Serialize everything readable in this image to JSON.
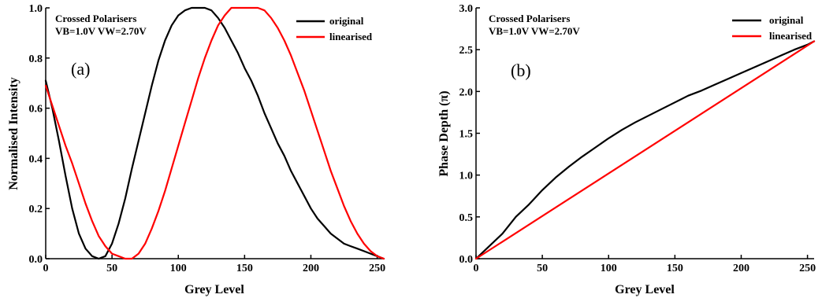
{
  "chart_data": [
    {
      "type": "line",
      "panel_label": "(a)",
      "xlabel": "Grey Level",
      "ylabel": "Normalised Intensity",
      "xlim": [
        0,
        255
      ],
      "ylim": [
        0,
        1.0
      ],
      "xticks": [
        0,
        50,
        100,
        150,
        200,
        250
      ],
      "yticks": [
        "0.0",
        "0.2",
        "0.4",
        "0.6",
        "0.8",
        "1.0"
      ],
      "grid": false,
      "annotation": [
        "Crossed Polarisers",
        "VB=1.0V VW=2.70V"
      ],
      "legend": "top-right",
      "series": [
        {
          "name": "original",
          "color": "#000000",
          "x": [
            0,
            5,
            10,
            15,
            20,
            25,
            30,
            35,
            40,
            45,
            50,
            55,
            60,
            65,
            70,
            75,
            80,
            85,
            90,
            95,
            100,
            105,
            110,
            115,
            120,
            125,
            130,
            135,
            140,
            145,
            150,
            155,
            160,
            165,
            170,
            175,
            180,
            185,
            190,
            195,
            200,
            205,
            210,
            215,
            220,
            225,
            230,
            235,
            240,
            245,
            250,
            255
          ],
          "values": [
            0.71,
            0.6,
            0.47,
            0.33,
            0.2,
            0.1,
            0.04,
            0.01,
            0.0,
            0.01,
            0.06,
            0.14,
            0.24,
            0.36,
            0.47,
            0.58,
            0.69,
            0.79,
            0.87,
            0.93,
            0.97,
            0.99,
            1.0,
            1.0,
            1.0,
            0.99,
            0.96,
            0.92,
            0.87,
            0.82,
            0.76,
            0.71,
            0.65,
            0.58,
            0.52,
            0.46,
            0.41,
            0.35,
            0.3,
            0.25,
            0.2,
            0.16,
            0.13,
            0.1,
            0.08,
            0.06,
            0.05,
            0.04,
            0.03,
            0.02,
            0.01,
            0.0
          ]
        },
        {
          "name": "linearised",
          "color": "#ff0000",
          "x": [
            0,
            5,
            10,
            15,
            20,
            25,
            30,
            35,
            40,
            45,
            50,
            55,
            60,
            65,
            70,
            75,
            80,
            85,
            90,
            95,
            100,
            105,
            110,
            115,
            120,
            125,
            130,
            135,
            140,
            145,
            150,
            155,
            160,
            165,
            170,
            175,
            180,
            185,
            190,
            195,
            200,
            205,
            210,
            215,
            220,
            225,
            230,
            235,
            240,
            245,
            250,
            255
          ],
          "values": [
            0.69,
            0.61,
            0.53,
            0.45,
            0.38,
            0.3,
            0.22,
            0.15,
            0.09,
            0.05,
            0.02,
            0.01,
            0.0,
            0.0,
            0.02,
            0.06,
            0.12,
            0.19,
            0.27,
            0.36,
            0.45,
            0.54,
            0.63,
            0.72,
            0.8,
            0.87,
            0.93,
            0.97,
            1.0,
            1.0,
            1.0,
            1.0,
            1.0,
            0.99,
            0.96,
            0.92,
            0.87,
            0.81,
            0.74,
            0.67,
            0.59,
            0.51,
            0.43,
            0.35,
            0.28,
            0.21,
            0.15,
            0.1,
            0.06,
            0.03,
            0.01,
            0.0
          ]
        }
      ]
    },
    {
      "type": "line",
      "panel_label": "(b)",
      "xlabel": "Grey Level",
      "ylabel": "Phase Depth (π)",
      "xlim": [
        0,
        255
      ],
      "ylim": [
        0,
        3.0
      ],
      "xticks": [
        0,
        50,
        100,
        150,
        200,
        250
      ],
      "yticks": [
        "0.0",
        "0.5",
        "1.0",
        "1.5",
        "2.0",
        "2.5",
        "3.0"
      ],
      "grid": false,
      "annotation": [
        "Crossed Polarisers",
        "VB=1.0V VW=2.70V"
      ],
      "legend": "top-right",
      "series": [
        {
          "name": "original",
          "color": "#000000",
          "x": [
            0,
            10,
            20,
            30,
            40,
            50,
            60,
            70,
            80,
            90,
            100,
            110,
            120,
            130,
            140,
            150,
            160,
            170,
            180,
            190,
            200,
            210,
            220,
            230,
            240,
            250,
            255
          ],
          "values": [
            0.0,
            0.15,
            0.3,
            0.5,
            0.65,
            0.82,
            0.97,
            1.1,
            1.22,
            1.33,
            1.44,
            1.54,
            1.63,
            1.71,
            1.79,
            1.87,
            1.95,
            2.01,
            2.08,
            2.15,
            2.22,
            2.29,
            2.36,
            2.43,
            2.5,
            2.56,
            2.6
          ]
        },
        {
          "name": "linearised",
          "color": "#ff0000",
          "x": [
            0,
            255
          ],
          "values": [
            0.0,
            2.6
          ]
        }
      ]
    }
  ]
}
